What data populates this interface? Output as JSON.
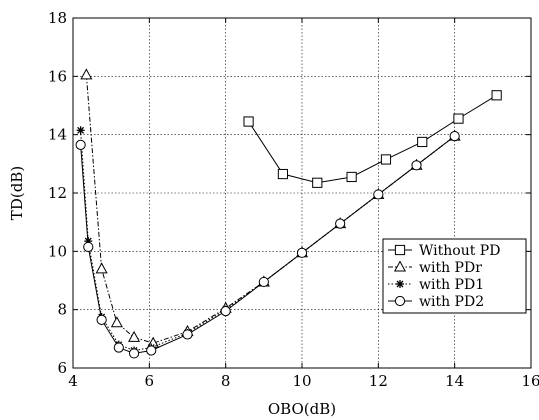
{
  "chart_data": {
    "type": "line",
    "xlabel": "OBO(dB)",
    "ylabel": "TD(dB)",
    "xlim": [
      4,
      16
    ],
    "ylim": [
      6,
      18
    ],
    "xticks": [
      "4",
      "6",
      "8",
      "10",
      "12",
      "14",
      "16"
    ],
    "yticks": [
      "6",
      "8",
      "10",
      "12",
      "14",
      "16",
      "18"
    ],
    "grid": true,
    "legend_position": "lower-right",
    "series": [
      {
        "name": "Without PD",
        "marker": "square",
        "dash": "solid",
        "x": [
          8.6,
          9.5,
          10.4,
          11.3,
          12.2,
          13.15,
          14.1,
          15.1
        ],
        "y": [
          14.45,
          12.65,
          12.35,
          12.55,
          13.15,
          13.75,
          14.55,
          15.35
        ]
      },
      {
        "name": "with PDr",
        "marker": "triangle",
        "dash": "dash-dot",
        "x": [
          4.35,
          4.75,
          5.15,
          5.6,
          6.1,
          7.0,
          8.0,
          9.0,
          10.0,
          11.0,
          12.0,
          13.0,
          14.0
        ],
        "y": [
          16.05,
          9.4,
          7.55,
          7.05,
          6.85,
          7.25,
          8.05,
          8.95,
          9.95,
          10.95,
          11.95,
          12.95,
          13.95
        ]
      },
      {
        "name": "with PD1",
        "marker": "star",
        "dash": "dotted",
        "x": [
          4.2,
          4.4,
          4.75,
          5.2,
          5.6,
          6.05,
          7.0,
          8.0,
          9.0,
          10.0,
          11.0,
          12.0,
          13.0,
          14.0
        ],
        "y": [
          14.15,
          10.35,
          7.75,
          6.8,
          6.6,
          6.7,
          7.2,
          8.0,
          8.95,
          9.95,
          10.95,
          11.95,
          12.95,
          13.95
        ]
      },
      {
        "name": "with PD2",
        "marker": "circle",
        "dash": "solid",
        "x": [
          4.2,
          4.4,
          4.75,
          5.2,
          5.6,
          6.05,
          7.0,
          8.0,
          9.0,
          10.0,
          11.0,
          12.0,
          13.0,
          14.0
        ],
        "y": [
          13.65,
          10.15,
          7.65,
          6.7,
          6.5,
          6.6,
          7.15,
          7.95,
          8.95,
          9.95,
          10.95,
          11.95,
          12.95,
          13.95
        ]
      }
    ]
  }
}
